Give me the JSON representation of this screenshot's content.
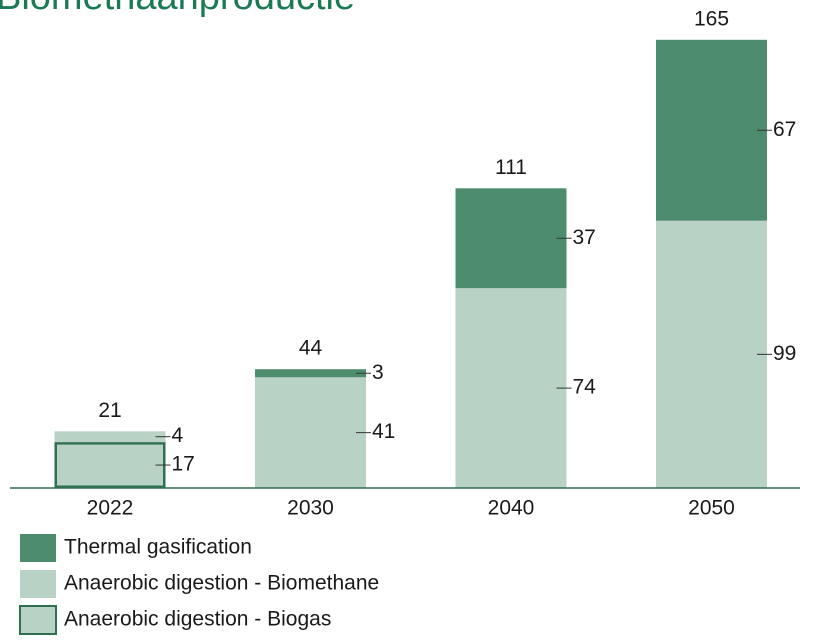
{
  "chart_data": {
    "type": "stacked-bar",
    "title": "Biomethaanproductie",
    "categories": [
      "2022",
      "2030",
      "2040",
      "2050"
    ],
    "series": [
      {
        "name": "Thermal gasification",
        "color": "#4e8c6e",
        "values": [
          null,
          3,
          37,
          67
        ]
      },
      {
        "name": "Anaerobic digestion - Biomethane",
        "color": "#b8d2c6",
        "values": [
          4,
          41,
          74,
          99
        ]
      },
      {
        "name": "Anaerobic digestion - Biogas",
        "color": "#b8d2c6",
        "outline": "#2e7050",
        "values": [
          17,
          null,
          null,
          null
        ]
      }
    ],
    "totals": [
      21,
      44,
      111,
      165
    ]
  }
}
